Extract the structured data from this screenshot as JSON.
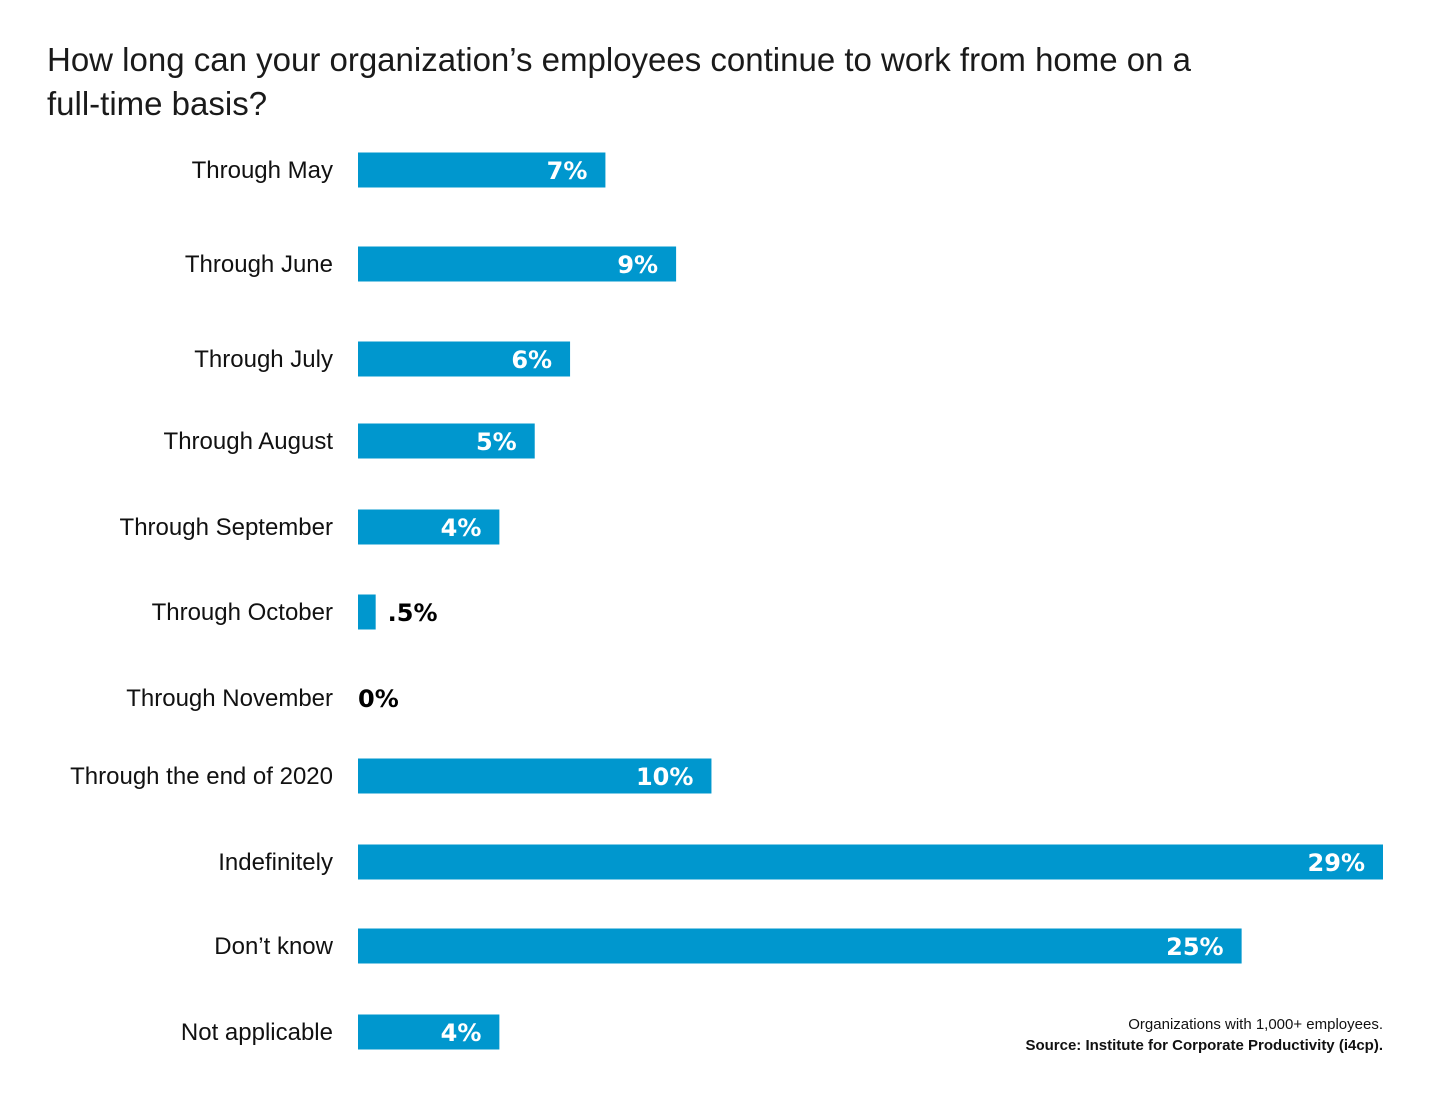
{
  "colors": {
    "bar": "#0097CE",
    "label_inside": "#ffffff",
    "label_outside": "#000000",
    "text": "#111111"
  },
  "footnote": {
    "note": "Organizations with 1,000+ employees.",
    "source": "Source: Institute for Corporate Productivity (i4cp)."
  },
  "chart_data": {
    "type": "bar",
    "orientation": "horizontal",
    "title": "How long can your organization’s employees continue to work from home on a full-time basis?",
    "categories": [
      "Through May",
      "Through June",
      "Through July",
      "Through August",
      "Through September",
      "Through October",
      "Through November",
      "Through the end of 2020",
      "Indefinitely",
      "Don’t know",
      "Not applicable"
    ],
    "values": [
      7,
      9,
      6,
      5,
      4,
      0.5,
      0,
      10,
      29,
      25,
      4
    ],
    "value_labels": [
      "7%",
      "9%",
      "6%",
      "5%",
      "4%",
      ".5%",
      "0%",
      "10%",
      "29%",
      "25%",
      "4%"
    ],
    "unit": "%",
    "xlim": [
      0,
      29
    ],
    "grid": false,
    "legend": "none"
  }
}
